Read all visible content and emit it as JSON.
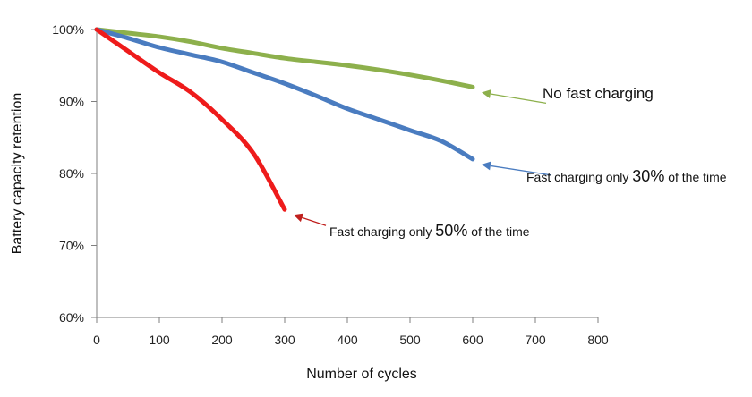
{
  "chart_data": {
    "type": "line",
    "xlabel": "Number of cycles",
    "ylabel": "Battery capacity retention",
    "xlim": [
      0,
      800
    ],
    "ylim": [
      60,
      100
    ],
    "x_ticks": [
      "0",
      "100",
      "200",
      "300",
      "400",
      "500",
      "600",
      "700",
      "800"
    ],
    "y_ticks": [
      "60%",
      "70%",
      "80%",
      "90%",
      "100%"
    ],
    "grid": false,
    "legend": "none",
    "series": [
      {
        "color": "#8db04c",
        "x": [
          0,
          50,
          100,
          150,
          200,
          250,
          300,
          350,
          400,
          450,
          500,
          550,
          600
        ],
        "y": [
          100,
          99.5,
          99.0,
          98.3,
          97.4,
          96.7,
          96.0,
          95.5,
          95.0,
          94.4,
          93.7,
          92.9,
          92.0
        ]
      },
      {
        "color": "#4a7cc0",
        "x": [
          0,
          50,
          100,
          150,
          200,
          250,
          300,
          350,
          400,
          450,
          500,
          550,
          600
        ],
        "y": [
          100,
          98.8,
          97.5,
          96.5,
          95.5,
          94.0,
          92.5,
          90.8,
          89.0,
          87.5,
          86.0,
          84.5,
          82.0
        ]
      },
      {
        "color": "#ee1b1b",
        "x": [
          0,
          50,
          100,
          150,
          200,
          250,
          300
        ],
        "y": [
          100,
          97.0,
          94.0,
          91.3,
          87.5,
          82.8,
          75.0
        ]
      }
    ],
    "annotations": [
      {
        "series_index": 0,
        "text_pre": "No fast charging",
        "text_big": "",
        "text_post": "",
        "point": [
          600,
          92.0
        ],
        "arrow_color": "#8db04c"
      },
      {
        "series_index": 1,
        "text_pre": "Fast charging only ",
        "text_big": "30%",
        "text_post": " of the time",
        "point": [
          600,
          82.0
        ],
        "arrow_color": "#4a7cc0"
      },
      {
        "series_index": 2,
        "text_pre": "Fast charging only ",
        "text_big": "50%",
        "text_post": " of the time",
        "point": [
          300,
          75.0
        ],
        "arrow_color": "#c0201e"
      }
    ]
  }
}
